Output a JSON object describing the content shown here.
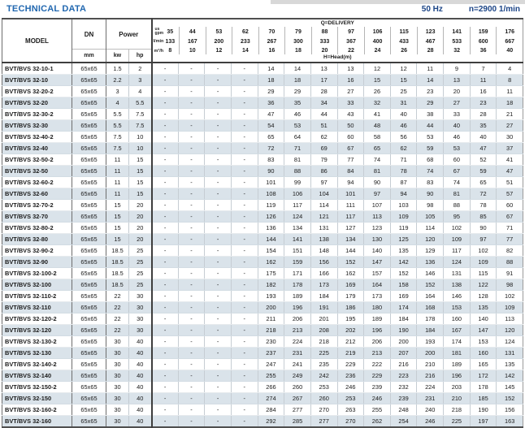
{
  "header": {
    "title": "TECHNICAL DATA",
    "frequency": "50 Hz",
    "speed": "n=2900 1/min"
  },
  "colors": {
    "title_blue": "#2268b0",
    "header_navy": "#1c4587",
    "row_shade": "#dae3ea",
    "top_strip": "#d8d8d8"
  },
  "table": {
    "column_headers": {
      "model": "MODEL",
      "dn": "DN",
      "dn_unit": "mm",
      "power": "Power",
      "power_unit_kw": "kw",
      "power_unit_hp": "hp",
      "delivery_title": "Q=DELIVERY",
      "head_title": "H=Head(m)",
      "gpm_unit_top": "us",
      "gpm_unit_bottom": "gpm",
      "lmin_unit": "l/min",
      "m3h_unit": "m³/h"
    },
    "delivery": {
      "us_gpm": [
        "35",
        "44",
        "53",
        "62",
        "70",
        "79",
        "88",
        "97",
        "106",
        "115",
        "123",
        "141",
        "159",
        "176"
      ],
      "l_min": [
        "133",
        "167",
        "200",
        "233",
        "267",
        "300",
        "333",
        "367",
        "400",
        "433",
        "467",
        "533",
        "600",
        "667"
      ],
      "m3_h": [
        "8",
        "10",
        "12",
        "14",
        "16",
        "18",
        "20",
        "22",
        "24",
        "26",
        "28",
        "32",
        "36",
        "40"
      ]
    },
    "rows": [
      {
        "model": "BVT/BVS 32-10-1",
        "dn": "65x65",
        "kw": "1.5",
        "hp": "2",
        "head": [
          "-",
          "-",
          "-",
          "-",
          "14",
          "14",
          "13",
          "13",
          "12",
          "12",
          "11",
          "9",
          "7",
          "4"
        ]
      },
      {
        "model": "BVT/BVS 32-10",
        "dn": "65x65",
        "kw": "2.2",
        "hp": "3",
        "head": [
          "-",
          "-",
          "-",
          "-",
          "18",
          "18",
          "17",
          "16",
          "15",
          "15",
          "14",
          "13",
          "11",
          "8"
        ]
      },
      {
        "model": "BVT/BVS 32-20-2",
        "dn": "65x65",
        "kw": "3",
        "hp": "4",
        "head": [
          "-",
          "-",
          "-",
          "-",
          "29",
          "29",
          "28",
          "27",
          "26",
          "25",
          "23",
          "20",
          "16",
          "11"
        ]
      },
      {
        "model": "BVT/BVS 32-20",
        "dn": "65x65",
        "kw": "4",
        "hp": "5.5",
        "head": [
          "-",
          "-",
          "-",
          "-",
          "36",
          "35",
          "34",
          "33",
          "32",
          "31",
          "29",
          "27",
          "23",
          "18"
        ]
      },
      {
        "model": "BVT/BVS 32-30-2",
        "dn": "65x65",
        "kw": "5.5",
        "hp": "7.5",
        "head": [
          "-",
          "-",
          "-",
          "-",
          "47",
          "46",
          "44",
          "43",
          "41",
          "40",
          "38",
          "33",
          "28",
          "21"
        ]
      },
      {
        "model": "BVT/BVS 32-30",
        "dn": "65x65",
        "kw": "5.5",
        "hp": "7.5",
        "head": [
          "-",
          "-",
          "-",
          "-",
          "54",
          "53",
          "51",
          "50",
          "48",
          "46",
          "44",
          "40",
          "35",
          "27"
        ]
      },
      {
        "model": "BVT/BVS 32-40-2",
        "dn": "65x65",
        "kw": "7.5",
        "hp": "10",
        "head": [
          "-",
          "-",
          "-",
          "-",
          "65",
          "64",
          "62",
          "60",
          "58",
          "56",
          "53",
          "46",
          "40",
          "30"
        ]
      },
      {
        "model": "BVT/BVS 32-40",
        "dn": "65x65",
        "kw": "7.5",
        "hp": "10",
        "head": [
          "-",
          "-",
          "-",
          "-",
          "72",
          "71",
          "69",
          "67",
          "65",
          "62",
          "59",
          "53",
          "47",
          "37"
        ]
      },
      {
        "model": "BVT/BVS 32-50-2",
        "dn": "65x65",
        "kw": "11",
        "hp": "15",
        "head": [
          "-",
          "-",
          "-",
          "-",
          "83",
          "81",
          "79",
          "77",
          "74",
          "71",
          "68",
          "60",
          "52",
          "41"
        ]
      },
      {
        "model": "BVT/BVS 32-50",
        "dn": "65x65",
        "kw": "11",
        "hp": "15",
        "head": [
          "-",
          "-",
          "-",
          "-",
          "90",
          "88",
          "86",
          "84",
          "81",
          "78",
          "74",
          "67",
          "59",
          "47"
        ]
      },
      {
        "model": "BVT/BVS 32-60-2",
        "dn": "65x65",
        "kw": "11",
        "hp": "15",
        "head": [
          "-",
          "-",
          "-",
          "-",
          "101",
          "99",
          "97",
          "94",
          "90",
          "87",
          "83",
          "74",
          "65",
          "51"
        ]
      },
      {
        "model": "BVT/BVS 32-60",
        "dn": "65x65",
        "kw": "11",
        "hp": "15",
        "head": [
          "-",
          "-",
          "-",
          "-",
          "108",
          "106",
          "104",
          "101",
          "97",
          "94",
          "90",
          "81",
          "72",
          "57"
        ]
      },
      {
        "model": "BVT/BVS 32-70-2",
        "dn": "65x65",
        "kw": "15",
        "hp": "20",
        "head": [
          "-",
          "-",
          "-",
          "-",
          "119",
          "117",
          "114",
          "111",
          "107",
          "103",
          "98",
          "88",
          "78",
          "60"
        ]
      },
      {
        "model": "BVT/BVS 32-70",
        "dn": "65x65",
        "kw": "15",
        "hp": "20",
        "head": [
          "-",
          "-",
          "-",
          "-",
          "126",
          "124",
          "121",
          "117",
          "113",
          "109",
          "105",
          "95",
          "85",
          "67"
        ]
      },
      {
        "model": "BVT/BVS 32-80-2",
        "dn": "65x65",
        "kw": "15",
        "hp": "20",
        "head": [
          "-",
          "-",
          "-",
          "-",
          "136",
          "134",
          "131",
          "127",
          "123",
          "119",
          "114",
          "102",
          "90",
          "71"
        ]
      },
      {
        "model": "BVT/BVS 32-80",
        "dn": "65x65",
        "kw": "15",
        "hp": "20",
        "head": [
          "-",
          "-",
          "-",
          "-",
          "144",
          "141",
          "138",
          "134",
          "130",
          "125",
          "120",
          "109",
          "97",
          "77"
        ]
      },
      {
        "model": "BVT/BVS 32-90-2",
        "dn": "65x65",
        "kw": "18.5",
        "hp": "25",
        "head": [
          "-",
          "-",
          "-",
          "-",
          "154",
          "151",
          "148",
          "144",
          "140",
          "135",
          "129",
          "117",
          "102",
          "82"
        ]
      },
      {
        "model": "BVT/BVS 32-90",
        "dn": "65x65",
        "kw": "18.5",
        "hp": "25",
        "head": [
          "-",
          "-",
          "-",
          "-",
          "162",
          "159",
          "156",
          "152",
          "147",
          "142",
          "136",
          "124",
          "109",
          "88"
        ]
      },
      {
        "model": "BVT/BVS 32-100-2",
        "dn": "65x65",
        "kw": "18.5",
        "hp": "25",
        "head": [
          "-",
          "-",
          "-",
          "-",
          "175",
          "171",
          "166",
          "162",
          "157",
          "152",
          "146",
          "131",
          "115",
          "91"
        ]
      },
      {
        "model": "BVT/BVS 32-100",
        "dn": "65x65",
        "kw": "18.5",
        "hp": "25",
        "head": [
          "-",
          "-",
          "-",
          "-",
          "182",
          "178",
          "173",
          "169",
          "164",
          "158",
          "152",
          "138",
          "122",
          "98"
        ]
      },
      {
        "model": "BVT/BVS 32-110-2",
        "dn": "65x65",
        "kw": "22",
        "hp": "30",
        "head": [
          "-",
          "-",
          "-",
          "-",
          "193",
          "189",
          "184",
          "179",
          "173",
          "169",
          "164",
          "146",
          "128",
          "102"
        ]
      },
      {
        "model": "BVT/BVS 32-110",
        "dn": "65x65",
        "kw": "22",
        "hp": "30",
        "head": [
          "-",
          "-",
          "-",
          "-",
          "200",
          "196",
          "191",
          "186",
          "180",
          "174",
          "168",
          "153",
          "135",
          "109"
        ]
      },
      {
        "model": "BVT/BVS 32-120-2",
        "dn": "65x65",
        "kw": "22",
        "hp": "30",
        "head": [
          "-",
          "-",
          "-",
          "-",
          "211",
          "206",
          "201",
          "195",
          "189",
          "184",
          "178",
          "160",
          "140",
          "113"
        ]
      },
      {
        "model": "BVT/BVS 32-120",
        "dn": "65x65",
        "kw": "22",
        "hp": "30",
        "head": [
          "-",
          "-",
          "-",
          "-",
          "218",
          "213",
          "208",
          "202",
          "196",
          "190",
          "184",
          "167",
          "147",
          "120"
        ]
      },
      {
        "model": "BVT/BVS 32-130-2",
        "dn": "65x65",
        "kw": "30",
        "hp": "40",
        "head": [
          "-",
          "-",
          "-",
          "-",
          "230",
          "224",
          "218",
          "212",
          "206",
          "200",
          "193",
          "174",
          "153",
          "124"
        ]
      },
      {
        "model": "BVT/BVS 32-130",
        "dn": "65x65",
        "kw": "30",
        "hp": "40",
        "head": [
          "-",
          "-",
          "-",
          "-",
          "237",
          "231",
          "225",
          "219",
          "213",
          "207",
          "200",
          "181",
          "160",
          "131"
        ]
      },
      {
        "model": "BVT/BVS 32-140-2",
        "dn": "65x65",
        "kw": "30",
        "hp": "40",
        "head": [
          "-",
          "-",
          "-",
          "-",
          "247",
          "241",
          "235",
          "229",
          "222",
          "216",
          "210",
          "189",
          "165",
          "135"
        ]
      },
      {
        "model": "BVT/BVS 32-140",
        "dn": "65x65",
        "kw": "30",
        "hp": "40",
        "head": [
          "-",
          "-",
          "-",
          "-",
          "255",
          "249",
          "242",
          "236",
          "229",
          "223",
          "216",
          "196",
          "172",
          "142"
        ]
      },
      {
        "model": "BVT/BVS 32-150-2",
        "dn": "65x65",
        "kw": "30",
        "hp": "40",
        "head": [
          "-",
          "-",
          "-",
          "-",
          "266",
          "260",
          "253",
          "246",
          "239",
          "232",
          "224",
          "203",
          "178",
          "145"
        ]
      },
      {
        "model": "BVT/BVS 32-150",
        "dn": "65x65",
        "kw": "30",
        "hp": "40",
        "head": [
          "-",
          "-",
          "-",
          "-",
          "274",
          "267",
          "260",
          "253",
          "246",
          "239",
          "231",
          "210",
          "185",
          "152"
        ]
      },
      {
        "model": "BVT/BVS 32-160-2",
        "dn": "65x65",
        "kw": "30",
        "hp": "40",
        "head": [
          "-",
          "-",
          "-",
          "-",
          "284",
          "277",
          "270",
          "263",
          "255",
          "248",
          "240",
          "218",
          "190",
          "156"
        ]
      },
      {
        "model": "BVT/BVS 32-160",
        "dn": "65x65",
        "kw": "30",
        "hp": "40",
        "head": [
          "-",
          "-",
          "-",
          "-",
          "292",
          "285",
          "277",
          "270",
          "262",
          "254",
          "246",
          "225",
          "197",
          "163"
        ]
      }
    ]
  }
}
